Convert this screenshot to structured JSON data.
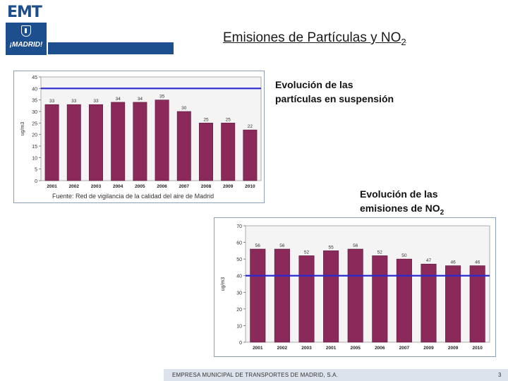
{
  "branding": {
    "logo_text": "EMT",
    "city_logo_text": "¡MADRID!",
    "brand_color": "#1d4f8f"
  },
  "slide": {
    "title_main": "Emisiones de Partículas y NO",
    "title_sub": "2",
    "caption1_line1": "Evolución de las",
    "caption1_line2": "partículas en suspensión",
    "caption2_line1": "Evolución de las",
    "caption2_line2": "emisiones de NO",
    "caption2_sub": "2"
  },
  "footer": {
    "company": "EMPRESA MUNICIPAL DE TRANSPORTES DE MADRID, S.A.",
    "page": "3"
  },
  "chart_data": [
    {
      "type": "bar",
      "categories": [
        "2001",
        "2002",
        "2003",
        "2004",
        "2005",
        "2006",
        "2007",
        "2008",
        "2009",
        "2010"
      ],
      "values": [
        33,
        33,
        33,
        34,
        34,
        35,
        30,
        25,
        25,
        22
      ],
      "ylabel": "ug/m3",
      "ylim": [
        0,
        45
      ],
      "yticks": [
        0,
        5,
        10,
        15,
        20,
        25,
        30,
        35,
        40,
        45
      ],
      "limit_line": 40,
      "source": "Fuente: Red de vigilancia de la calidad del aire de Madrid",
      "bar_color": "#8b2a5a",
      "limit_color": "#2a2ad0",
      "grid": false
    },
    {
      "type": "bar",
      "categories": [
        "2001",
        "2002",
        "2003",
        "2001",
        "2005",
        "2006",
        "2007",
        "2009",
        "2009",
        "2010"
      ],
      "values": [
        56,
        56,
        52,
        55,
        56,
        52,
        50,
        47,
        46,
        46
      ],
      "ylabel": "ug/m3",
      "ylim": [
        0,
        70
      ],
      "yticks": [
        0,
        10,
        20,
        30,
        40,
        50,
        60,
        70
      ],
      "limit_line": 40,
      "bar_color": "#8b2a5a",
      "limit_color": "#2a2ad0",
      "grid": false
    }
  ]
}
